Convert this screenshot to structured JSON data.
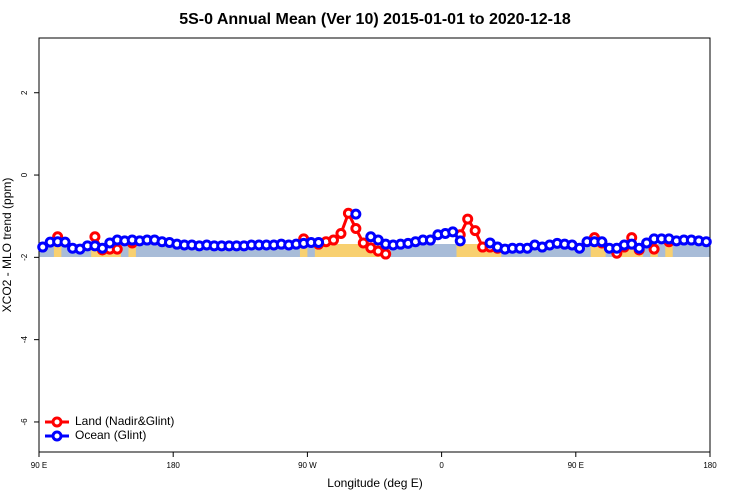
{
  "chart_data": {
    "type": "line",
    "title": "5S-0 Annual Mean (Ver 10)   2015-01-01 to 2020-12-18",
    "x_label": "Longitude (deg E)",
    "y_label": "XCO2 - MLO trend (ppm)",
    "x": [
      92.5,
      97.5,
      102.5,
      107.5,
      112.5,
      117.5,
      122.5,
      127.5,
      132.5,
      137.5,
      142.5,
      147.5,
      152.5,
      157.5,
      162.5,
      167.5,
      172.5,
      177.5,
      182.5,
      187.5,
      192.5,
      197.5,
      202.5,
      207.5,
      212.5,
      217.5,
      222.5,
      227.5,
      232.5,
      237.5,
      242.5,
      247.5,
      252.5,
      257.5,
      262.5,
      267.5,
      272.5,
      277.5,
      282.5,
      287.5,
      292.5,
      297.5,
      302.5,
      307.5,
      312.5,
      317.5,
      322.5,
      327.5,
      332.5,
      337.5,
      342.5,
      347.5,
      352.5,
      357.5,
      362.5,
      367.5,
      372.5,
      377.5,
      382.5,
      387.5,
      392.5,
      397.5,
      402.5,
      407.5,
      412.5,
      417.5,
      422.5,
      427.5,
      432.5,
      437.5,
      442.5,
      447.5,
      452.5,
      457.5,
      462.5,
      467.5,
      472.5,
      477.5,
      482.5,
      487.5,
      492.5,
      497.5,
      502.5,
      507.5,
      512.5,
      517.5,
      522.5,
      527.5,
      532.5,
      537.5
    ],
    "series": [
      {
        "name": "Land (Nadir&Glint)",
        "color": "#ff0000",
        "values": [
          null,
          null,
          -1.5,
          null,
          null,
          null,
          null,
          -1.5,
          -1.82,
          -1.8,
          -1.8,
          null,
          -1.65,
          null,
          null,
          null,
          null,
          null,
          null,
          null,
          null,
          null,
          null,
          null,
          null,
          null,
          null,
          null,
          null,
          null,
          null,
          null,
          null,
          null,
          null,
          -1.55,
          null,
          -1.68,
          -1.62,
          -1.58,
          -1.42,
          -0.93,
          -1.3,
          -1.65,
          -1.77,
          -1.85,
          -1.92,
          null,
          null,
          null,
          null,
          null,
          null,
          null,
          null,
          null,
          -1.45,
          -1.07,
          -1.35,
          -1.75,
          -1.75,
          -1.78,
          null,
          null,
          null,
          null,
          null,
          null,
          null,
          null,
          null,
          null,
          null,
          null,
          -1.52,
          -1.65,
          null,
          -1.9,
          -1.75,
          -1.52,
          -1.82,
          null,
          -1.8,
          null,
          -1.62,
          null,
          null,
          null,
          null,
          null
        ]
      },
      {
        "name": "Ocean (Glint)",
        "color": "#0000ff",
        "values": [
          -1.75,
          -1.63,
          -1.62,
          -1.63,
          -1.78,
          -1.8,
          -1.72,
          -1.72,
          -1.78,
          -1.65,
          -1.58,
          -1.6,
          -1.58,
          -1.6,
          -1.58,
          -1.58,
          -1.62,
          -1.64,
          -1.68,
          -1.7,
          -1.7,
          -1.72,
          -1.7,
          -1.72,
          -1.72,
          -1.72,
          -1.72,
          -1.72,
          -1.7,
          -1.7,
          -1.7,
          -1.7,
          -1.68,
          -1.7,
          -1.68,
          -1.66,
          -1.64,
          -1.64,
          null,
          null,
          null,
          null,
          -0.95,
          null,
          -1.5,
          -1.58,
          -1.68,
          -1.7,
          -1.68,
          -1.66,
          -1.62,
          -1.58,
          -1.58,
          -1.45,
          -1.42,
          -1.38,
          -1.6,
          null,
          null,
          null,
          -1.65,
          -1.75,
          -1.8,
          -1.78,
          -1.78,
          -1.78,
          -1.7,
          -1.75,
          -1.7,
          -1.66,
          -1.68,
          -1.7,
          -1.78,
          -1.62,
          -1.62,
          -1.62,
          -1.78,
          -1.78,
          -1.7,
          -1.68,
          -1.78,
          -1.65,
          -1.55,
          -1.55,
          -1.55,
          -1.6,
          -1.58,
          -1.58,
          -1.6,
          -1.62
        ]
      }
    ],
    "xlim": [
      90,
      540
    ],
    "xticks": [
      {
        "value": 90,
        "label": "90 E"
      },
      180,
      {
        "value": 270,
        "label": "90 W"
      },
      {
        "value": 360,
        "label": "0"
      },
      {
        "value": 450,
        "label": "90 E"
      },
      {
        "value": 540,
        "label": "180"
      }
    ],
    "ylim": [
      -6.73,
      3.33
    ],
    "yticks": [
      2,
      0,
      -2,
      -4,
      -6
    ],
    "legend": "bottomleft"
  }
}
